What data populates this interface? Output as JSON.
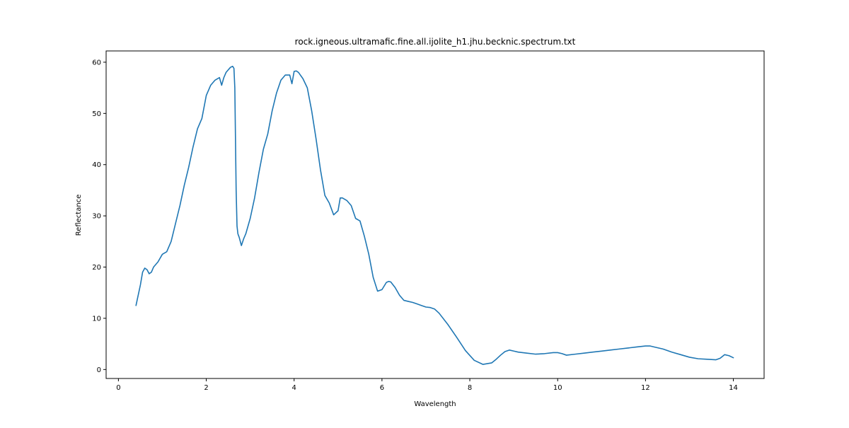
{
  "chart_data": {
    "type": "line",
    "title": "rock.igneous.ultramafic.fine.all.ijolite_h1.jhu.becknic.spectrum.txt",
    "xlabel": "Wavelength",
    "ylabel": "Reflectance",
    "xlim": [
      -0.28,
      14.7
    ],
    "ylim": [
      -1.75,
      62.2
    ],
    "xticks": [
      0,
      2,
      4,
      6,
      8,
      10,
      12,
      14
    ],
    "yticks": [
      0,
      10,
      20,
      30,
      40,
      50,
      60
    ],
    "grid": false,
    "legend": "none",
    "colors": {
      "line": "#1f77b4",
      "axes": "#000000",
      "background": "#ffffff"
    },
    "series": [
      {
        "x": [
          0.4,
          0.45,
          0.5,
          0.55,
          0.6,
          0.65,
          0.7,
          0.75,
          0.8,
          0.85,
          0.9,
          1.0,
          1.1,
          1.2,
          1.3,
          1.4,
          1.5,
          1.6,
          1.7,
          1.8,
          1.9,
          2.0,
          2.1,
          2.2,
          2.3,
          2.35,
          2.4,
          2.45,
          2.5,
          2.55,
          2.6,
          2.63,
          2.65,
          2.68,
          2.7,
          2.72,
          2.75,
          2.8,
          2.85,
          2.9,
          3.0,
          3.1,
          3.2,
          3.3,
          3.4,
          3.5,
          3.6,
          3.7,
          3.8,
          3.9,
          3.95,
          4.0,
          4.05,
          4.1,
          4.2,
          4.3,
          4.4,
          4.5,
          4.6,
          4.7,
          4.8,
          4.9,
          5.0,
          5.05,
          5.1,
          5.2,
          5.3,
          5.4,
          5.5,
          5.6,
          5.7,
          5.8,
          5.9,
          6.0,
          6.1,
          6.15,
          6.2,
          6.3,
          6.4,
          6.5,
          6.6,
          6.7,
          6.8,
          6.9,
          7.0,
          7.1,
          7.2,
          7.3,
          7.5,
          7.7,
          7.9,
          8.1,
          8.3,
          8.5,
          8.6,
          8.7,
          8.8,
          8.9,
          9.0,
          9.1,
          9.3,
          9.5,
          9.7,
          9.9,
          10.0,
          10.1,
          10.2,
          10.4,
          10.6,
          10.8,
          11.0,
          11.2,
          11.4,
          11.6,
          11.8,
          12.0,
          12.1,
          12.2,
          12.4,
          12.6,
          12.8,
          13.0,
          13.2,
          13.4,
          13.6,
          13.7,
          13.8,
          13.9,
          14.0
        ],
        "y": [
          12.5,
          14.5,
          16.5,
          19.0,
          19.8,
          19.5,
          18.7,
          19.0,
          20.0,
          20.5,
          21.0,
          22.5,
          23.0,
          25.0,
          28.5,
          32.0,
          36.0,
          39.5,
          43.5,
          47.0,
          49.0,
          53.5,
          55.5,
          56.5,
          57.0,
          55.5,
          57.0,
          58.0,
          58.5,
          59.0,
          59.2,
          58.8,
          55.0,
          35.0,
          28.0,
          26.5,
          25.8,
          24.2,
          25.5,
          26.5,
          29.5,
          33.5,
          38.5,
          43.0,
          46.0,
          50.5,
          54.0,
          56.5,
          57.5,
          57.5,
          55.8,
          58.2,
          58.3,
          58.0,
          56.8,
          55.0,
          50.5,
          45.0,
          39.0,
          34.0,
          32.5,
          30.2,
          31.0,
          33.5,
          33.5,
          33.0,
          32.0,
          29.5,
          29.0,
          26.0,
          22.5,
          18.0,
          15.3,
          15.6,
          17.0,
          17.2,
          17.1,
          16.0,
          14.5,
          13.5,
          13.3,
          13.1,
          12.8,
          12.5,
          12.2,
          12.1,
          11.8,
          11.0,
          8.8,
          6.3,
          3.7,
          1.8,
          1.0,
          1.3,
          2.0,
          2.8,
          3.5,
          3.8,
          3.6,
          3.4,
          3.2,
          3.0,
          3.1,
          3.3,
          3.3,
          3.1,
          2.8,
          3.0,
          3.2,
          3.4,
          3.6,
          3.8,
          4.0,
          4.2,
          4.4,
          4.6,
          4.6,
          4.4,
          4.0,
          3.4,
          2.9,
          2.4,
          2.1,
          2.0,
          1.9,
          2.2,
          2.9,
          2.7,
          2.3
        ]
      }
    ]
  }
}
